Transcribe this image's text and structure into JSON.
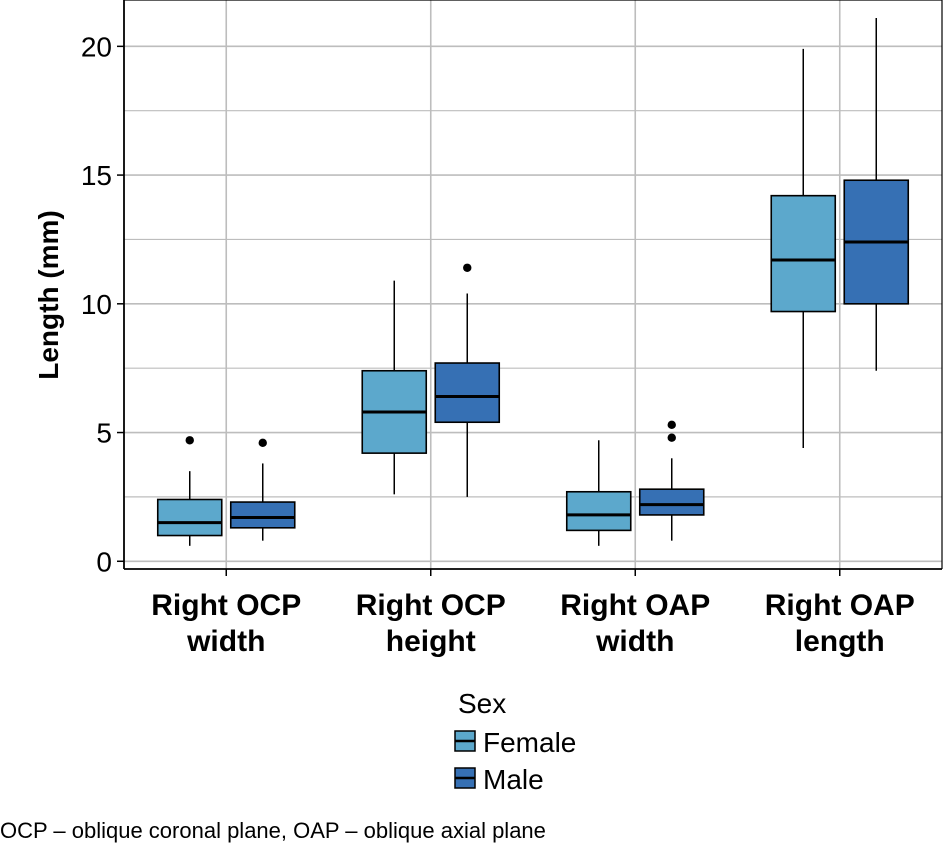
{
  "chart_data": {
    "type": "boxplot",
    "ylabel": "Length (mm)",
    "xlabel": "",
    "ylim": [
      -0.3,
      21.8
    ],
    "yticks": [
      0,
      5,
      10,
      15,
      20
    ],
    "grid": true,
    "categories": [
      [
        "Right OCP",
        "width"
      ],
      [
        "Right OCP",
        "height"
      ],
      [
        "Right OAP",
        "width"
      ],
      [
        "Right OAP",
        "length"
      ]
    ],
    "legend": {
      "title": "Sex",
      "position": "bottom"
    },
    "series": [
      {
        "name": "Female",
        "color": "#5ca8cc",
        "boxes": [
          {
            "whisker_low": 0.6,
            "q1": 1.0,
            "median": 1.5,
            "q3": 2.4,
            "whisker_high": 3.5,
            "outliers": [
              4.7
            ]
          },
          {
            "whisker_low": 2.6,
            "q1": 4.2,
            "median": 5.8,
            "q3": 7.4,
            "whisker_high": 10.9,
            "outliers": []
          },
          {
            "whisker_low": 0.6,
            "q1": 1.2,
            "median": 1.8,
            "q3": 2.7,
            "whisker_high": 4.7,
            "outliers": []
          },
          {
            "whisker_low": 4.4,
            "q1": 9.7,
            "median": 11.7,
            "q3": 14.2,
            "whisker_high": 19.9,
            "outliers": []
          }
        ]
      },
      {
        "name": "Male",
        "color": "#3670b4",
        "boxes": [
          {
            "whisker_low": 0.8,
            "q1": 1.3,
            "median": 1.7,
            "q3": 2.3,
            "whisker_high": 3.8,
            "outliers": [
              4.6
            ]
          },
          {
            "whisker_low": 2.5,
            "q1": 5.4,
            "median": 6.4,
            "q3": 7.7,
            "whisker_high": 10.4,
            "outliers": [
              11.4
            ]
          },
          {
            "whisker_low": 0.8,
            "q1": 1.8,
            "median": 2.2,
            "q3": 2.8,
            "whisker_high": 4.0,
            "outliers": [
              4.8,
              5.3
            ]
          },
          {
            "whisker_low": 7.4,
            "q1": 10.0,
            "median": 12.4,
            "q3": 14.8,
            "whisker_high": 21.1,
            "outliers": []
          }
        ]
      }
    ]
  },
  "footnote": "OCP – oblique coronal plane, OAP – oblique axial plane"
}
